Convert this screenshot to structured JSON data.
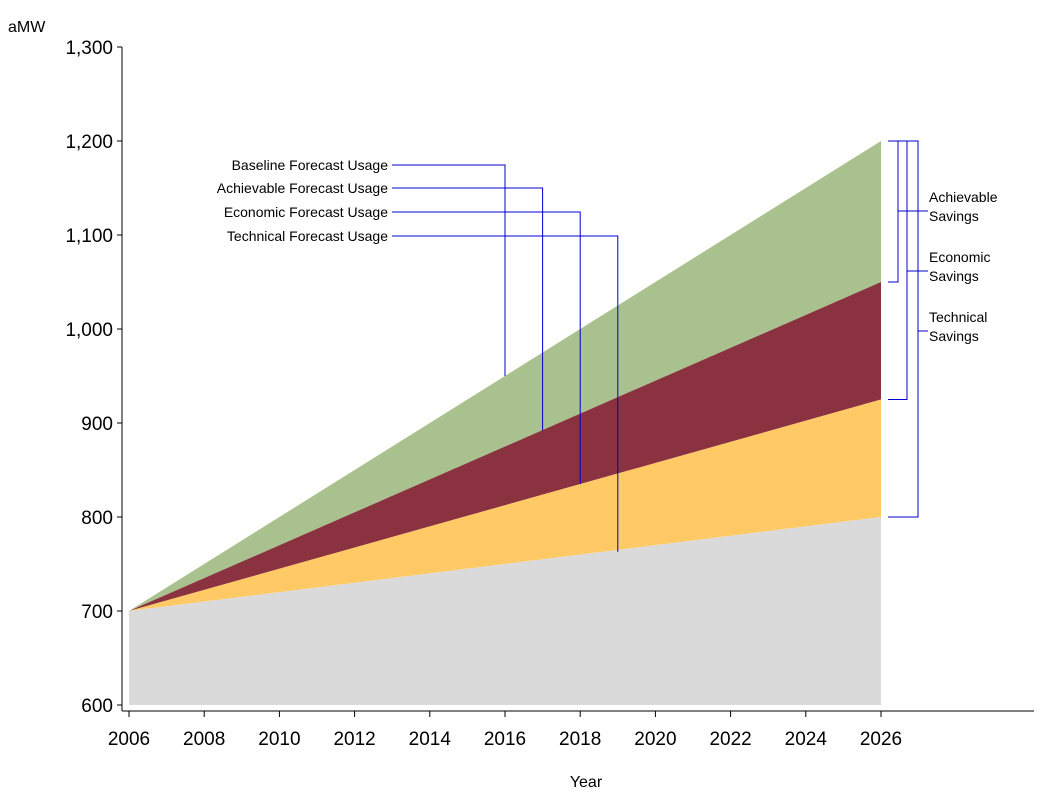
{
  "chart_data": {
    "type": "area",
    "ylabel": "aMW",
    "xlabel": "Year",
    "xlim": [
      2006,
      2026
    ],
    "ylim": [
      600,
      1300
    ],
    "x_ticks": [
      2006,
      2008,
      2010,
      2012,
      2014,
      2016,
      2018,
      2020,
      2022,
      2024,
      2026
    ],
    "y_ticks": [
      600,
      700,
      800,
      900,
      1000,
      1100,
      1200,
      1300
    ],
    "x_tick_labels": [
      "2006",
      "2008",
      "2010",
      "2012",
      "2014",
      "2016",
      "2018",
      "2020",
      "2022",
      "2024",
      "2026"
    ],
    "y_tick_labels": [
      "600",
      "700",
      "800",
      "900",
      "1,000",
      "1,100",
      "1,200",
      "1,300"
    ],
    "grid": false,
    "x": [
      2006,
      2026
    ],
    "series": [
      {
        "name": "Baseline Forecast Usage",
        "values": [
          700,
          1200
        ],
        "color": "#a9c18f"
      },
      {
        "name": "Achievable Forecast Usage",
        "values": [
          700,
          1050
        ],
        "color": "#8b3240"
      },
      {
        "name": "Economic Forecast Usage",
        "values": [
          700,
          925
        ],
        "color": "#ffc966"
      },
      {
        "name": "Technical Forecast Usage",
        "values": [
          700,
          800
        ],
        "color": "#dadada"
      }
    ],
    "series_annotations": [
      {
        "label": "Baseline Forecast Usage",
        "x": 2016,
        "y": 950
      },
      {
        "label": "Achievable Forecast Usage",
        "x": 2017,
        "y": 892
      },
      {
        "label": "Economic Forecast Usage",
        "x": 2018,
        "y": 835
      },
      {
        "label": "Technical Forecast Usage",
        "x": 2019,
        "y": 763
      }
    ],
    "savings_brackets": [
      {
        "lines": [
          "Achievable",
          "Savings"
        ],
        "from": 1200,
        "to": 1050
      },
      {
        "lines": [
          "Economic",
          "Savings"
        ],
        "from": 1200,
        "to": 925
      },
      {
        "lines": [
          "Technical",
          "Savings"
        ],
        "from": 1200,
        "to": 800
      }
    ],
    "annotation_line_color": "#0000cc"
  }
}
